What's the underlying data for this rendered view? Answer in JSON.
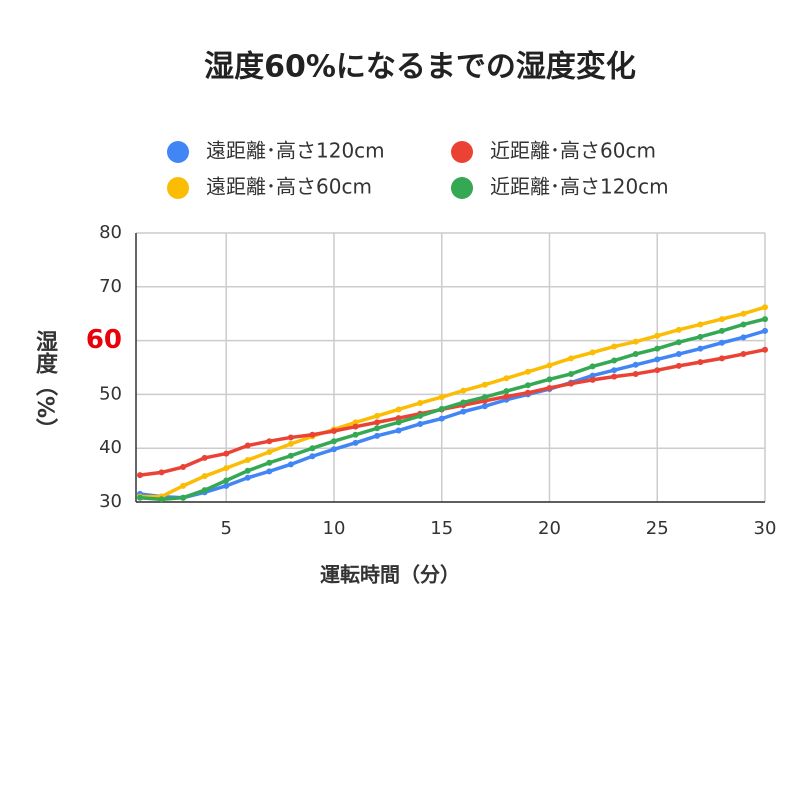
{
  "chart_data": {
    "type": "line",
    "title": "湿度60%になるまでの湿度変化",
    "x_label": "運転時間（分）",
    "y_label": "湿度（%）",
    "x": [
      1,
      2,
      3,
      4,
      5,
      6,
      7,
      8,
      9,
      10,
      11,
      12,
      13,
      14,
      15,
      16,
      17,
      18,
      19,
      20,
      21,
      22,
      23,
      24,
      25,
      26,
      27,
      28,
      29,
      30
    ],
    "xlim": [
      1,
      30
    ],
    "xticks": [
      5,
      10,
      15,
      20,
      25,
      30
    ],
    "ylim": [
      30,
      80
    ],
    "yticks": [
      30,
      40,
      50,
      60,
      70,
      80
    ],
    "ytick_colors": [
      "#333333",
      "#333333",
      "#333333",
      "#e8000b",
      "#333333",
      "#333333"
    ],
    "grid": true,
    "series": [
      {
        "name": "遠距離･高さ120cm",
        "color": "#4285f4",
        "values": [
          31.5,
          31,
          30.8,
          31.8,
          33,
          34.5,
          35.7,
          37,
          38.5,
          39.8,
          41,
          42.3,
          43.3,
          44.5,
          45.5,
          46.8,
          47.8,
          49,
          50,
          51,
          52.2,
          53.5,
          54.5,
          55.5,
          56.5,
          57.5,
          58.5,
          59.6,
          60.6,
          61.8
        ]
      },
      {
        "name": "遠距離･高さ60cm",
        "color": "#fbbc04",
        "values": [
          31,
          31,
          33,
          34.8,
          36.3,
          37.8,
          39.3,
          40.8,
          42.2,
          43.5,
          44.8,
          46,
          47.2,
          48.4,
          49.5,
          50.7,
          51.8,
          53,
          54.2,
          55.4,
          56.7,
          57.8,
          58.9,
          59.8,
          60.9,
          62,
          63,
          64,
          65,
          66.2
        ]
      },
      {
        "name": "近距離･高さ60cm",
        "color": "#ea4335",
        "values": [
          35,
          35.5,
          36.5,
          38.2,
          39,
          40.5,
          41.3,
          42,
          42.5,
          43.2,
          44,
          44.8,
          45.6,
          46.4,
          47.2,
          48,
          48.8,
          49.6,
          50.3,
          51.2,
          52,
          52.7,
          53.3,
          53.8,
          54.5,
          55.3,
          56,
          56.7,
          57.5,
          58.3
        ]
      },
      {
        "name": "近距離･高さ120cm",
        "color": "#34a853",
        "values": [
          30.8,
          30.5,
          30.8,
          32.2,
          34,
          35.8,
          37.3,
          38.6,
          40,
          41.3,
          42.5,
          43.7,
          44.8,
          46,
          47.3,
          48.5,
          49.5,
          50.6,
          51.7,
          52.8,
          53.8,
          55.2,
          56.3,
          57.5,
          58.5,
          59.7,
          60.7,
          61.8,
          63,
          64
        ]
      }
    ]
  }
}
